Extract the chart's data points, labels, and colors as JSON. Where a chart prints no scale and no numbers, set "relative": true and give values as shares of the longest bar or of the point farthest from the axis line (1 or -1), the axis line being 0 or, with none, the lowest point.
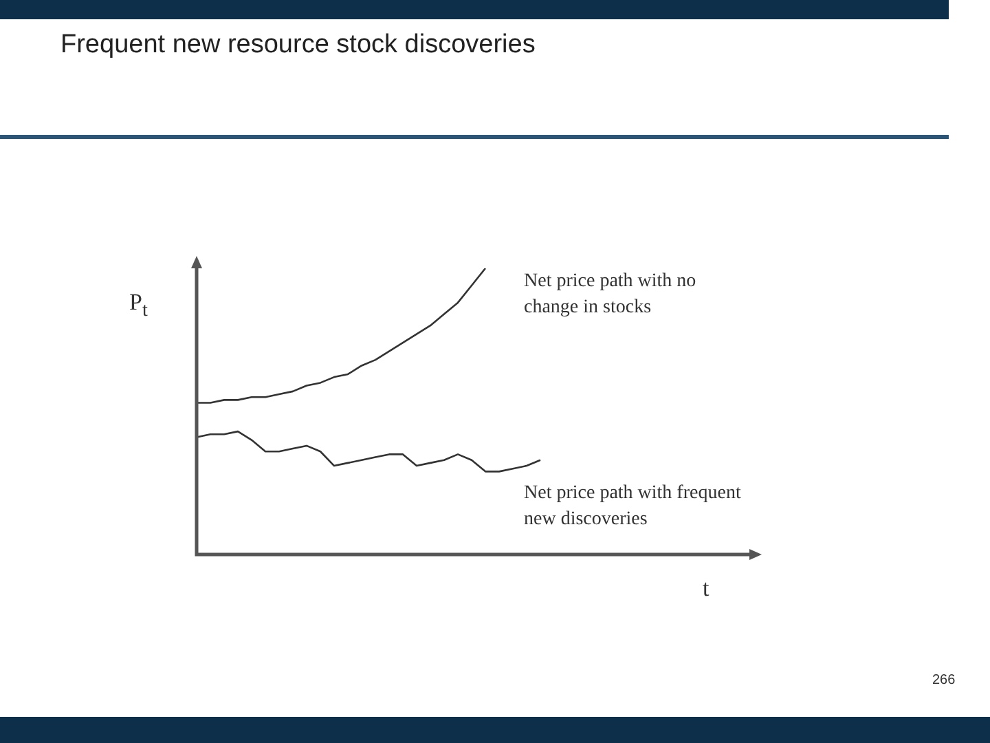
{
  "chart_data": {
    "type": "line",
    "title": "Frequent new resource stock discoveries",
    "ylabel": "P$_{t}$",
    "xlabel": "t",
    "relative": true,
    "legend": false,
    "marker": "none",
    "line_style": "solid",
    "categories": [
      null,
      null,
      null,
      null,
      null,
      null,
      null,
      null,
      null,
      null,
      null,
      null,
      null,
      null,
      null,
      null,
      null,
      null,
      null,
      null,
      null,
      null,
      null,
      null,
      null,
      null,
      null,
      null,
      null,
      null,
      null,
      null,
      null,
      null,
      null,
      null,
      null,
      null,
      null,
      null,
      null
    ],
    "series": [
      {
        "color": "#333333",
        "values": [
          0.53,
          0.53,
          0.54,
          0.54,
          0.55,
          0.55,
          0.56,
          0.57,
          0.59,
          0.6,
          0.62,
          0.63,
          0.66,
          0.68,
          0.71,
          0.74,
          0.77,
          0.8,
          0.84,
          0.88,
          0.94,
          1,
          null,
          null,
          null,
          null,
          null,
          null,
          null,
          null,
          null,
          null,
          null,
          null,
          null,
          null,
          null,
          null,
          null,
          null,
          null
        ]
      },
      {
        "color": "#333333",
        "values": [
          0.41,
          0.42,
          0.42,
          0.43,
          0.4,
          0.36,
          0.36,
          0.37,
          0.38,
          0.36,
          0.31,
          0.32,
          0.33,
          0.34,
          0.35,
          0.35,
          0.31,
          0.32,
          0.33,
          0.35,
          0.33,
          0.29,
          0.29,
          0.3,
          0.31,
          0.33,
          null,
          null,
          null,
          null,
          null,
          null,
          null,
          null,
          null,
          null,
          null,
          null,
          null,
          null,
          null
        ]
      }
    ],
    "annotations": [
      "Net price path with no change in stocks",
      "Net price path with frequent new discoveries",
      "266"
    ]
  }
}
